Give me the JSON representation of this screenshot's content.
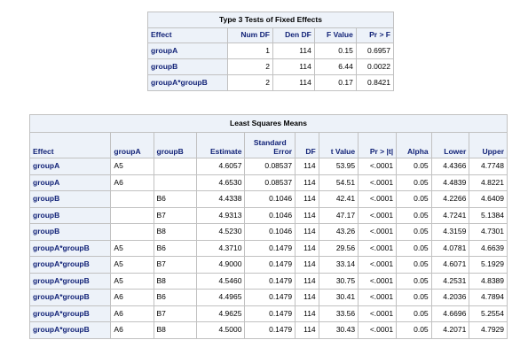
{
  "fixed_effects": {
    "title": "Type 3 Tests of Fixed Effects",
    "headers": [
      "Effect",
      "Num DF",
      "Den DF",
      "F Value",
      "Pr > F"
    ],
    "rows": [
      [
        "groupA",
        "1",
        "114",
        "0.15",
        "0.6957"
      ],
      [
        "groupB",
        "2",
        "114",
        "6.44",
        "0.0022"
      ],
      [
        "groupA*groupB",
        "2",
        "114",
        "0.17",
        "0.8421"
      ]
    ]
  },
  "lsmeans": {
    "title": "Least Squares Means",
    "headers": [
      "Effect",
      "groupA",
      "groupB",
      "Estimate",
      "Standard Error",
      "DF",
      "t Value",
      "Pr > |t|",
      "Alpha",
      "Lower",
      "Upper"
    ],
    "header_line1": {
      "stderr": "Standard"
    },
    "header_line2": {
      "stderr": "Error"
    },
    "rows": [
      [
        "groupA",
        "A5",
        "",
        "4.6057",
        "0.08537",
        "114",
        "53.95",
        "<.0001",
        "0.05",
        "4.4366",
        "4.7748"
      ],
      [
        "groupA",
        "A6",
        "",
        "4.6530",
        "0.08537",
        "114",
        "54.51",
        "<.0001",
        "0.05",
        "4.4839",
        "4.8221"
      ],
      [
        "groupB",
        "",
        "B6",
        "4.4338",
        "0.1046",
        "114",
        "42.41",
        "<.0001",
        "0.05",
        "4.2266",
        "4.6409"
      ],
      [
        "groupB",
        "",
        "B7",
        "4.9313",
        "0.1046",
        "114",
        "47.17",
        "<.0001",
        "0.05",
        "4.7241",
        "5.1384"
      ],
      [
        "groupB",
        "",
        "B8",
        "4.5230",
        "0.1046",
        "114",
        "43.26",
        "<.0001",
        "0.05",
        "4.3159",
        "4.7301"
      ],
      [
        "groupA*groupB",
        "A5",
        "B6",
        "4.3710",
        "0.1479",
        "114",
        "29.56",
        "<.0001",
        "0.05",
        "4.0781",
        "4.6639"
      ],
      [
        "groupA*groupB",
        "A5",
        "B7",
        "4.9000",
        "0.1479",
        "114",
        "33.14",
        "<.0001",
        "0.05",
        "4.6071",
        "5.1929"
      ],
      [
        "groupA*groupB",
        "A5",
        "B8",
        "4.5460",
        "0.1479",
        "114",
        "30.75",
        "<.0001",
        "0.05",
        "4.2531",
        "4.8389"
      ],
      [
        "groupA*groupB",
        "A6",
        "B6",
        "4.4965",
        "0.1479",
        "114",
        "30.41",
        "<.0001",
        "0.05",
        "4.2036",
        "4.7894"
      ],
      [
        "groupA*groupB",
        "A6",
        "B7",
        "4.9625",
        "0.1479",
        "114",
        "33.56",
        "<.0001",
        "0.05",
        "4.6696",
        "5.2554"
      ],
      [
        "groupA*groupB",
        "A6",
        "B8",
        "4.5000",
        "0.1479",
        "114",
        "30.43",
        "<.0001",
        "0.05",
        "4.2071",
        "4.7929"
      ]
    ]
  }
}
